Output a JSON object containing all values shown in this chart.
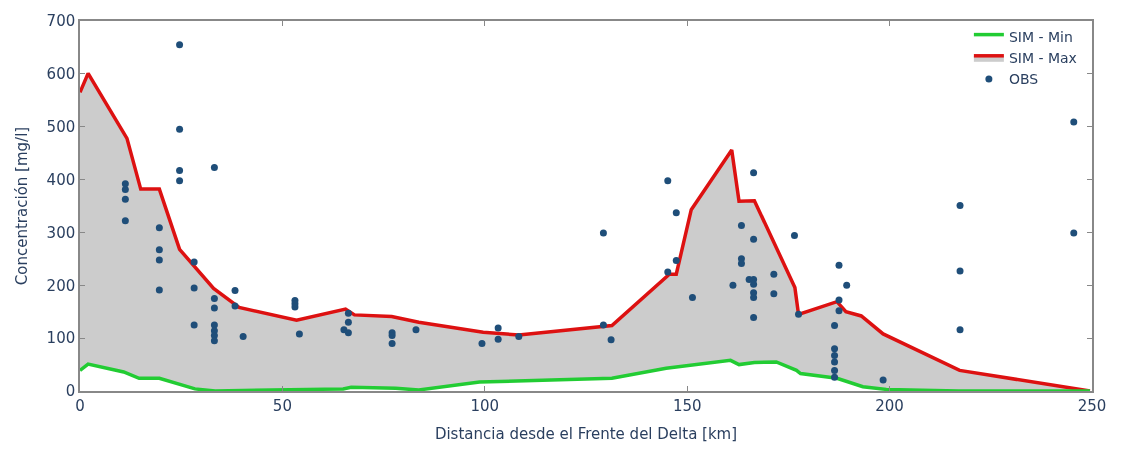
{
  "chart_data": {
    "type": "line",
    "xlabel": "Distancia desde el Frente del Delta [km]",
    "ylabel": "Concentración [mg/l]",
    "xlim": [
      0,
      250
    ],
    "xticks": [
      0,
      50,
      100,
      150,
      200,
      250
    ],
    "ylim": [
      0,
      700
    ],
    "yticks": [
      0,
      100,
      200,
      300,
      400,
      500,
      600,
      700
    ],
    "legend": "top right",
    "series": [
      {
        "name": "SIM - Min",
        "color": "#22cc33",
        "x": [
          0,
          2,
          10.8,
          14.6,
          19.6,
          28.4,
          33.4,
          65,
          67,
          78,
          83.7,
          98.7,
          131.4,
          144.8,
          160.7,
          162.8,
          166.6,
          172,
          177,
          178,
          187,
          193.4,
          199.2,
          217,
          249.5
        ],
        "values": [
          39,
          51,
          36,
          24,
          24,
          4,
          0,
          4,
          7,
          5,
          2,
          17,
          24,
          43,
          58,
          50,
          54,
          55,
          39,
          33,
          24,
          8,
          3,
          0,
          0
        ]
      },
      {
        "name": "SIM - Max",
        "type": "area",
        "color": "#dd1111",
        "x": [
          0,
          2,
          11.6,
          15,
          19.6,
          24.6,
          33,
          39.3,
          53.5,
          65.6,
          67.8,
          77,
          83.7,
          99.6,
          108.4,
          131.4,
          145.6,
          147.3,
          151,
          161,
          162.8,
          166.6,
          176.6,
          177.5,
          187,
          189.2,
          193,
          198.4,
          217.3,
          249.5
        ],
        "values": [
          565,
          601,
          478,
          382,
          382,
          268,
          194,
          158,
          134,
          155,
          144,
          141,
          130,
          111,
          106,
          124,
          221,
          221,
          343,
          456,
          359,
          360,
          196,
          145,
          169,
          150,
          142,
          108,
          39,
          0
        ]
      },
      {
        "name": "OBS",
        "type": "scatter",
        "marker": "circle",
        "color": "#1f4e79",
        "x": [
          24.6,
          24.6,
          24.6,
          24.6,
          33.2,
          11.2,
          11.2,
          11.2,
          11.2,
          19.6,
          19.6,
          19.6,
          19.6,
          28.2,
          28.2,
          28.2,
          33.2,
          33.2,
          33.2,
          33.2,
          33.2,
          33.2,
          38.3,
          38.3,
          40.3,
          53.1,
          53.1,
          53.1,
          54.2,
          66.3,
          66.3,
          65.2,
          66.3,
          77.1,
          77.1,
          77.1,
          83,
          99.3,
          103.3,
          103.3,
          108.4,
          129.3,
          129.3,
          131.2,
          145.2,
          145.2,
          147.3,
          147.3,
          151.3,
          161.3,
          163.4,
          163.4,
          163.4,
          166.4,
          166.4,
          165.3,
          166.4,
          166.4,
          166.4,
          166.4,
          166.4,
          176.5,
          171.4,
          171.4,
          177.5,
          187.5,
          189.4,
          187.5,
          187.5,
          186.4,
          186.4,
          186.4,
          186.4,
          186.4,
          186.4,
          198.4,
          217.4,
          217.4,
          217.4,
          245.5,
          245.5
        ],
        "values": [
          655,
          495,
          417,
          398,
          423,
          392,
          381,
          363,
          322,
          309,
          267,
          248,
          191,
          244,
          195,
          125,
          175,
          157,
          125,
          114,
          105,
          95,
          190,
          161,
          103,
          171,
          165,
          159,
          108,
          147,
          130,
          116,
          110,
          110,
          105,
          90,
          116,
          90,
          119,
          98,
          103,
          299,
          125,
          97,
          398,
          225,
          337,
          247,
          177,
          200,
          313,
          250,
          241,
          413,
          287,
          211,
          211,
          202,
          186,
          177,
          139,
          294,
          221,
          184,
          145,
          238,
          200,
          172,
          152,
          124,
          80,
          67,
          55,
          39,
          26,
          21,
          351,
          227,
          116,
          509,
          299
        ]
      }
    ]
  }
}
